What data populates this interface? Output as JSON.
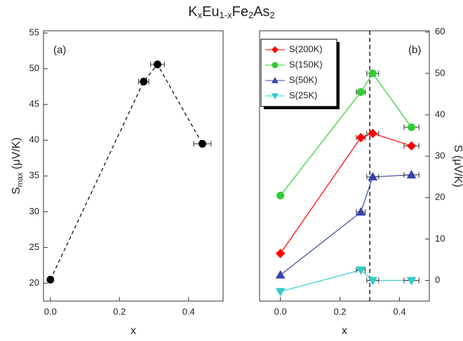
{
  "title": [
    "K",
    "x",
    "Eu",
    "1-x",
    "Fe",
    "2",
    "As",
    "2"
  ],
  "chart_data": [
    {
      "type": "line",
      "panel_label": "(a)",
      "x_label": "x",
      "y_label": [
        "S",
        "max",
        " (μV/K)"
      ],
      "xlim": [
        -0.02,
        0.5
      ],
      "xticks": [
        {
          "value": 0,
          "label": "0.0"
        },
        0.2,
        0.4
      ],
      "ylim": [
        17.5,
        55.3
      ],
      "yticks": [
        20,
        25,
        30,
        35,
        40,
        45,
        50,
        55
      ],
      "y_axis_side": "left",
      "x": [
        0,
        0.27,
        0.31,
        0.44
      ],
      "xerr": [
        null,
        0.015,
        0.02,
        0.025
      ],
      "series": [
        {
          "color": "#000000",
          "marker": "circle",
          "line": "dashed",
          "values": [
            20.5,
            48.2,
            50.6,
            39.5
          ]
        }
      ]
    },
    {
      "type": "line",
      "panel_label": "(b)",
      "x_label": "x",
      "y_label": "S (μV/K)",
      "xlim": [
        -0.07,
        0.5
      ],
      "xticks": [
        {
          "value": 0,
          "label": "0.0"
        },
        0.2,
        0.4
      ],
      "ylim": [
        -5,
        60.3
      ],
      "yticks": [
        0,
        10,
        20,
        30,
        40,
        50,
        60
      ],
      "y_axis_side": "right",
      "vline": 0.3,
      "legend": "upper left",
      "x": [
        0,
        0.27,
        0.31,
        0.44
      ],
      "xerr": [
        null,
        0.015,
        0.02,
        0.025
      ],
      "series": [
        {
          "name": "S(200K)",
          "color": "#ff0000",
          "marker": "diamond",
          "line": "solid",
          "values": [
            6.5,
            34.5,
            35.5,
            32.5
          ]
        },
        {
          "name": "S(150K)",
          "color": "#33cc33",
          "marker": "circle",
          "line": "solid",
          "values": [
            20.5,
            45.5,
            50,
            37
          ]
        },
        {
          "name": "S(50K)",
          "color": "#3344aa",
          "marker": "triangle-up",
          "line": "solid",
          "values": [
            1.3,
            16.5,
            25,
            25.5
          ]
        },
        {
          "name": "S(25K)",
          "color": "#33cccc",
          "marker": "triangle-down",
          "line": "solid",
          "values": [
            -2.7,
            2.5,
            0,
            0
          ]
        }
      ]
    }
  ]
}
